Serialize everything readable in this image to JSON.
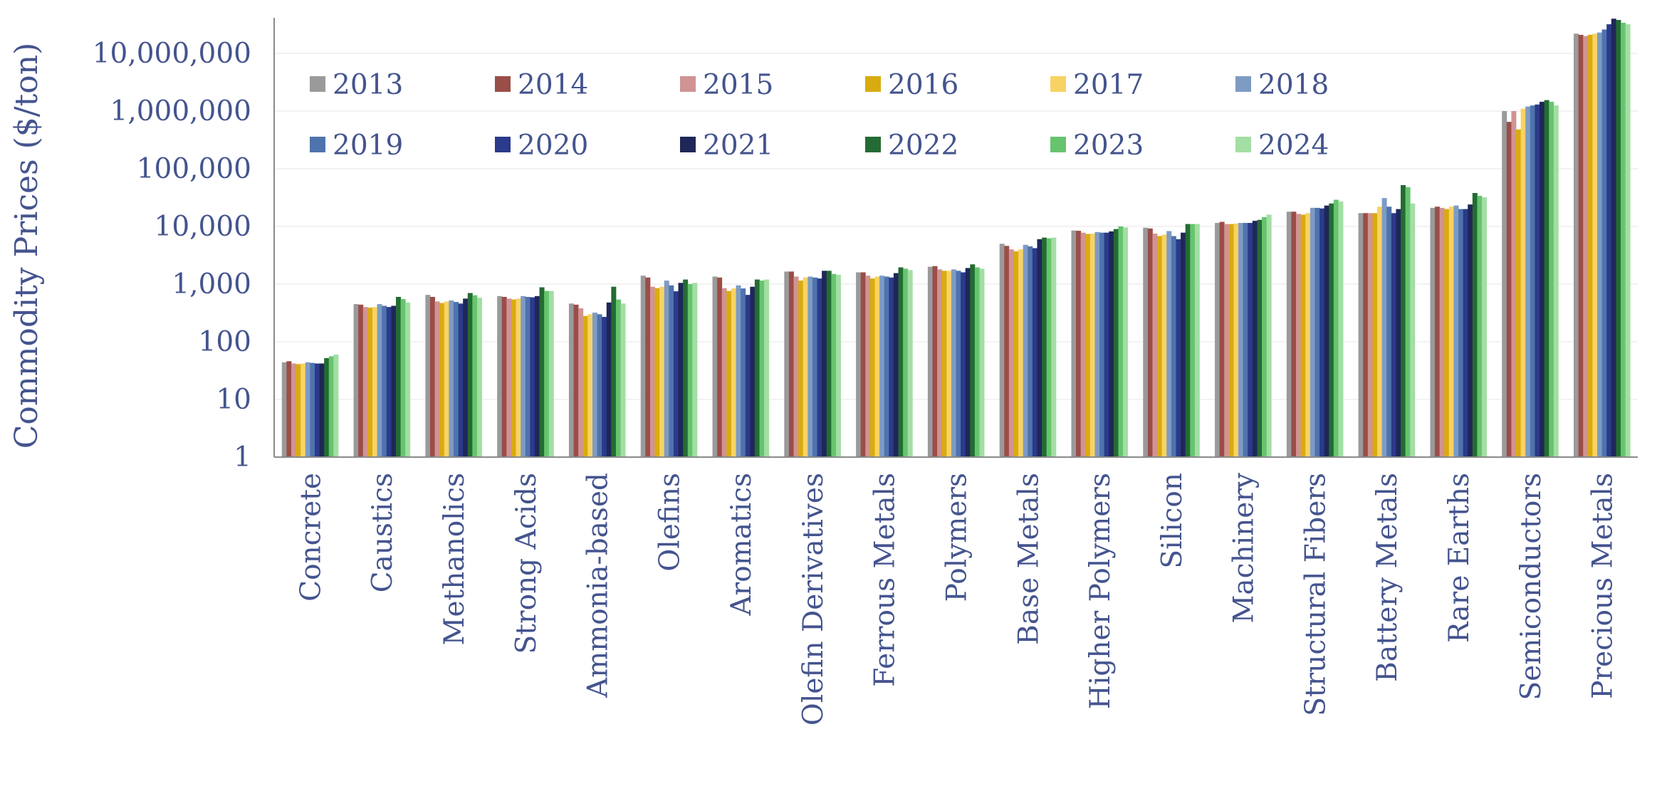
{
  "chart_data": {
    "type": "bar",
    "title": "",
    "xlabel": "",
    "ylabel": "Commodity Prices ($/ton)",
    "yscale": "log",
    "ylim": [
      1,
      30000000
    ],
    "yticks": [
      "1",
      "10",
      "100",
      "1,000",
      "10,000",
      "100,000",
      "1,000,000",
      "10,000,000"
    ],
    "ytick_values": [
      1,
      10,
      100,
      1000,
      10000,
      100000,
      1000000,
      10000000
    ],
    "grid": "horizontal, light",
    "legend_position": "top-left, inside plot, 2 rows",
    "categories": [
      "Concrete",
      "Caustics",
      "Methanolics",
      "Strong Acids",
      "Ammonia-based",
      "Olefins",
      "Aromatics",
      "Olefin Derivatives",
      "Ferrous Metals",
      "Polymers",
      "Base Metals",
      "Higher Polymers",
      "Silicon",
      "Machinery",
      "Structural Fibers",
      "Battery Metals",
      "Rare Earths",
      "Semiconductors",
      "Precious Metals"
    ],
    "series": [
      {
        "name": "2013",
        "color": "#9a9a9a",
        "values": [
          44,
          450,
          650,
          620,
          460,
          1400,
          1350,
          1650,
          1600,
          2000,
          5000,
          8500,
          9500,
          11500,
          18000,
          17000,
          21000,
          1000000,
          22000000
        ]
      },
      {
        "name": "2014",
        "color": "#9b4d48",
        "values": [
          46,
          440,
          600,
          600,
          440,
          1300,
          1300,
          1650,
          1600,
          2050,
          4600,
          8400,
          9200,
          12000,
          18000,
          17000,
          22000,
          650000,
          21000000
        ]
      },
      {
        "name": "2015",
        "color": "#d19393",
        "values": [
          42,
          400,
          500,
          560,
          380,
          900,
          850,
          1350,
          1400,
          1800,
          4000,
          7800,
          7500,
          11000,
          16500,
          17000,
          21000,
          1000000,
          20000000
        ]
      },
      {
        "name": "2016",
        "color": "#d9ab10",
        "values": [
          41,
          390,
          470,
          540,
          280,
          850,
          760,
          1150,
          1250,
          1700,
          3700,
          7400,
          6800,
          11000,
          16000,
          17000,
          20000,
          480000,
          21000000
        ]
      },
      {
        "name": "2017",
        "color": "#f8d363",
        "values": [
          42,
          400,
          500,
          560,
          300,
          900,
          840,
          1300,
          1350,
          1700,
          4000,
          7500,
          7200,
          11200,
          17000,
          22000,
          22000,
          1100000,
          22000000
        ]
      },
      {
        "name": "2018",
        "color": "#7e9bc4",
        "values": [
          44,
          450,
          520,
          620,
          320,
          1150,
          950,
          1350,
          1400,
          1800,
          4800,
          8000,
          8300,
          11500,
          21000,
          31000,
          23000,
          1200000,
          23000000
        ]
      },
      {
        "name": "2019",
        "color": "#4f73ad",
        "values": [
          43,
          420,
          490,
          600,
          300,
          950,
          840,
          1300,
          1350,
          1700,
          4500,
          7800,
          6800,
          11500,
          21000,
          22000,
          20000,
          1250000,
          26000000
        ]
      },
      {
        "name": "2020",
        "color": "#2b3a8a",
        "values": [
          42,
          400,
          460,
          590,
          270,
          750,
          650,
          1250,
          1300,
          1600,
          4200,
          7800,
          6000,
          11500,
          20500,
          17000,
          20000,
          1300000,
          32000000
        ]
      },
      {
        "name": "2021",
        "color": "#1f2759",
        "values": [
          42,
          420,
          560,
          620,
          480,
          1050,
          900,
          1700,
          1550,
          1900,
          6000,
          8200,
          7800,
          12500,
          23000,
          20000,
          24000,
          1450000,
          40000000
        ]
      },
      {
        "name": "2022",
        "color": "#236b33",
        "values": [
          52,
          600,
          700,
          880,
          900,
          1200,
          1200,
          1700,
          1950,
          2200,
          6400,
          9000,
          11000,
          13000,
          25000,
          52000,
          38000,
          1550000,
          38000000
        ]
      },
      {
        "name": "2023",
        "color": "#66c46e",
        "values": [
          56,
          550,
          640,
          760,
          540,
          1000,
          1150,
          1500,
          1850,
          1950,
          6200,
          10000,
          11000,
          14500,
          29000,
          48000,
          34000,
          1450000,
          34000000
        ]
      },
      {
        "name": "2024",
        "color": "#a3dea4",
        "values": [
          60,
          480,
          580,
          760,
          460,
          1050,
          1200,
          1450,
          1750,
          1850,
          6400,
          9600,
          11000,
          16000,
          27000,
          25000,
          32000,
          1250000,
          32000000
        ]
      }
    ]
  }
}
